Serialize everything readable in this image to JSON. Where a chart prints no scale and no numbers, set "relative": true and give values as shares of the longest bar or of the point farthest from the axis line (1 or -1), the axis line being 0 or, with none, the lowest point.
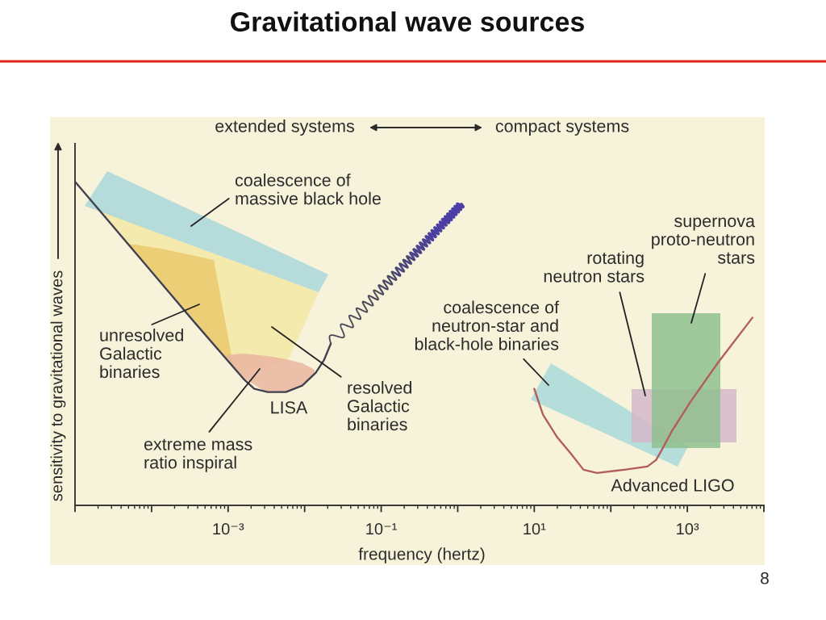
{
  "chart_data": {
    "type": "line",
    "title": "Gravitational wave sources",
    "xlabel": "frequency (hertz)",
    "ylabel": "sensitivity to gravitational waves",
    "log": "x",
    "relative": true,
    "xlim": [
      1e-05,
      10000
    ],
    "xticks": [
      {
        "value": 1e-05,
        "label": null
      },
      {
        "value": 0.0001,
        "label": null
      },
      {
        "value": 0.001,
        "label": "10⁻³"
      },
      {
        "value": 0.01,
        "label": null
      },
      {
        "value": 0.1,
        "label": "10⁻¹"
      },
      {
        "value": 1,
        "label": null
      },
      {
        "value": 10,
        "label": "10¹"
      },
      {
        "value": 100,
        "label": null
      },
      {
        "value": 1000,
        "label": "10³"
      },
      {
        "value": 10000,
        "label": null
      }
    ],
    "series": [
      {
        "color": "#404050",
        "x": [
          1e-05,
          8.6e-05,
          0.00035,
          0.0016,
          0.0022,
          0.0033,
          0.0057,
          0.0093,
          0.014,
          0.018,
          0.022
        ],
        "values": [
          1.0,
          0.74,
          0.57,
          0.39,
          0.36,
          0.35,
          0.35,
          0.37,
          0.41,
          0.45,
          0.5
        ]
      },
      {
        "color": "#b25c5c",
        "x": [
          10,
          13,
          20,
          30,
          44,
          66,
          150,
          300,
          390,
          460,
          630,
          1100,
          2500,
          7100
        ],
        "values": [
          0.36,
          0.28,
          0.21,
          0.16,
          0.11,
          0.1,
          0.11,
          0.12,
          0.14,
          0.17,
          0.23,
          0.32,
          0.44,
          0.58
        ]
      }
    ],
    "annotations": [
      "extended systems",
      "compact systems",
      "coalescence of\nmassive black hole",
      "unresolved\nGalactic\nbinaries",
      {
        "text": "LISA",
        "x": 0.0033,
        "y": 0.35
      },
      "resolved\nGalactic\nbinaries",
      "extreme mass\nratio inspiral",
      "coalescence of\nneutron-star and\nblack-hole binaries",
      "rotating\nneutron stars",
      "supernova\nproto-neutron\nstars",
      "Advanced LIGO",
      "8"
    ]
  }
}
